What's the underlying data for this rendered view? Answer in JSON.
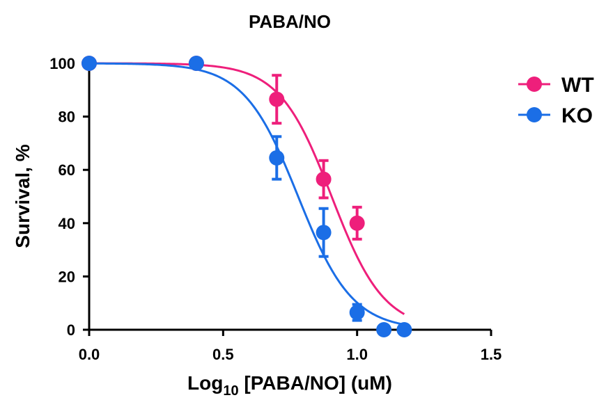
{
  "chart_data": {
    "type": "scatter",
    "title": "PABA/NO",
    "xlabel_main": "Log",
    "xlabel_sub": "10",
    "xlabel_rest": " [PABA/NO] (uM)",
    "ylabel": "Survival, %",
    "xlim": [
      0,
      1.5
    ],
    "ylim": [
      0,
      100
    ],
    "xticks": [
      0,
      0.5,
      1.0,
      1.5
    ],
    "xtick_labels": [
      "0.0",
      "0.5",
      "1.0",
      "1.5"
    ],
    "yticks": [
      0,
      20,
      40,
      60,
      80,
      100
    ],
    "ytick_labels": [
      "0",
      "20",
      "40",
      "60",
      "80",
      "100"
    ],
    "legend_position": "top-right",
    "series": [
      {
        "name": "WT",
        "color": "#ee1f7b",
        "x": [
          0.0,
          0.4,
          0.7,
          0.875,
          1.0
        ],
        "y": [
          100,
          100,
          86.5,
          56.5,
          40
        ],
        "error": [
          0,
          0,
          9,
          7,
          6
        ],
        "fit": {
          "top": 100,
          "bottom": 0,
          "logIC50": 0.905,
          "hill": 4.45,
          "xrange": [
            0.0,
            1.176
          ]
        }
      },
      {
        "name": "KO",
        "color": "#1b6ee6",
        "x": [
          0.0,
          0.4,
          0.7,
          0.875,
          1.0,
          1.1,
          1.176
        ],
        "y": [
          100,
          100,
          64.5,
          36.5,
          6.5,
          0,
          0
        ],
        "error": [
          0,
          0,
          8,
          9,
          3,
          0,
          0
        ],
        "fit": {
          "top": 100,
          "bottom": 0,
          "logIC50": 0.78,
          "hill": 4.3,
          "xrange": [
            0.0,
            1.176
          ]
        }
      }
    ]
  }
}
